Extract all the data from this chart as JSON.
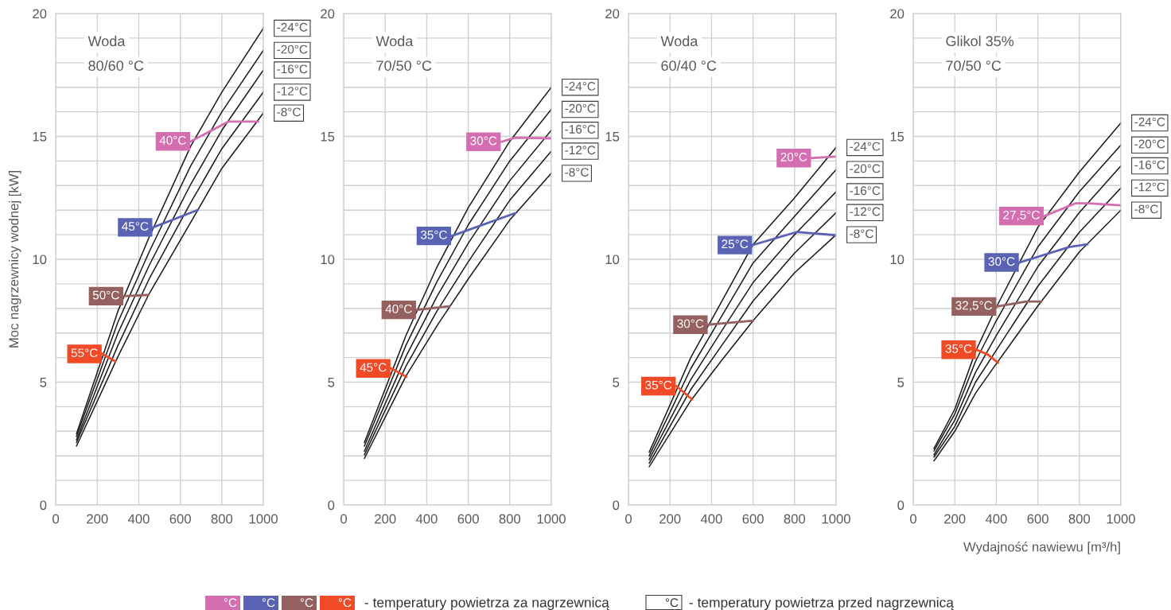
{
  "chart_data": [
    {
      "type": "line",
      "title": "Woda",
      "subtitle": "80/60 °C",
      "ylabel": "Moc nagrzewnicy wodnej [kW]",
      "xlim": [
        0,
        1000
      ],
      "ylim": [
        0,
        20
      ],
      "xticks": [
        0,
        200,
        400,
        600,
        800,
        1000
      ],
      "yticks": [
        0,
        {
          "value": 1,
          "label": null
        },
        {
          "value": 2,
          "label": null
        },
        {
          "value": 3,
          "label": null
        },
        {
          "value": 4,
          "label": null
        },
        5,
        {
          "value": 6,
          "label": null
        },
        {
          "value": 7,
          "label": null
        },
        {
          "value": 8,
          "label": null
        },
        {
          "value": 9,
          "label": null
        },
        10,
        {
          "value": 11,
          "label": null
        },
        {
          "value": 12,
          "label": null
        },
        {
          "value": 13,
          "label": null
        },
        {
          "value": 14,
          "label": null
        },
        15,
        {
          "value": 16,
          "label": null
        },
        {
          "value": 17,
          "label": null
        },
        {
          "value": 18,
          "label": null
        },
        {
          "value": 19,
          "label": null
        },
        20
      ],
      "grid": true,
      "marker": "none",
      "line_style": "solid",
      "annotations": [
        "°C",
        "- temperatury powietrza za nagrzewnicą",
        "- temperatury powietrza przed nagrzewnicą"
      ],
      "series": [
        {
          "name": "-24°C",
          "color": "#1a1a1a",
          "x": [
            100,
            300,
            450,
            650,
            800,
            1000
          ],
          "values": [
            2.9,
            7.9,
            10.9,
            14.6,
            16.8,
            19.4
          ]
        },
        {
          "name": "-20°C",
          "color": "#1a1a1a",
          "x": [
            100,
            300,
            450,
            650,
            800,
            1000
          ],
          "values": [
            2.8,
            7.45,
            10.3,
            13.8,
            16.0,
            18.5
          ]
        },
        {
          "name": "-16°C",
          "color": "#1a1a1a",
          "x": [
            100,
            300,
            450,
            650,
            800,
            1000
          ],
          "values": [
            2.65,
            7.0,
            9.75,
            13.05,
            15.25,
            17.7
          ]
        },
        {
          "name": "-12°C",
          "color": "#1a1a1a",
          "x": [
            100,
            300,
            450,
            650,
            800,
            1000
          ],
          "values": [
            2.55,
            6.5,
            9.2,
            12.3,
            14.5,
            16.8
          ]
        },
        {
          "name": "-8°C",
          "color": "#1a1a1a",
          "x": [
            100,
            300,
            450,
            650,
            800,
            1000
          ],
          "values": [
            2.4,
            6.05,
            8.6,
            11.5,
            13.7,
            15.95
          ]
        },
        {
          "name": "40°C",
          "color": "#d36fb0",
          "x": [
            651,
            831,
            975
          ],
          "values": [
            14.8,
            15.6,
            15.6
          ]
        },
        {
          "name": "45°C",
          "color": "#5a63b3",
          "x": [
            469,
            682
          ],
          "values": [
            11.3,
            12.0
          ]
        },
        {
          "name": "50°C",
          "color": "#946060",
          "x": [
            329,
            445
          ],
          "values": [
            8.5,
            8.55
          ]
        },
        {
          "name": "55°C",
          "color": "#f04a26",
          "x": [
            225,
            286
          ],
          "values": [
            6.15,
            5.85
          ]
        }
      ]
    },
    {
      "type": "line",
      "title": "Woda",
      "subtitle": "70/50 °C",
      "xlim": [
        0,
        1000
      ],
      "ylim": [
        0,
        20
      ],
      "xticks": [
        0,
        200,
        400,
        600,
        800,
        1000
      ],
      "yticks": [
        0,
        {
          "value": 1,
          "label": null
        },
        {
          "value": 2,
          "label": null
        },
        {
          "value": 3,
          "label": null
        },
        {
          "value": 4,
          "label": null
        },
        5,
        {
          "value": 6,
          "label": null
        },
        {
          "value": 7,
          "label": null
        },
        {
          "value": 8,
          "label": null
        },
        {
          "value": 9,
          "label": null
        },
        10,
        {
          "value": 11,
          "label": null
        },
        {
          "value": 12,
          "label": null
        },
        {
          "value": 13,
          "label": null
        },
        {
          "value": 14,
          "label": null
        },
        15,
        {
          "value": 16,
          "label": null
        },
        {
          "value": 17,
          "label": null
        },
        {
          "value": 18,
          "label": null
        },
        {
          "value": 19,
          "label": null
        },
        20
      ],
      "grid": true,
      "marker": "none",
      "line_style": "solid",
      "series": [
        {
          "name": "-24°C",
          "color": "#1a1a1a",
          "x": [
            100,
            300,
            450,
            600,
            800,
            1000
          ],
          "values": [
            2.55,
            6.9,
            9.7,
            12.1,
            14.8,
            17.0
          ]
        },
        {
          "name": "-20°C",
          "color": "#1a1a1a",
          "x": [
            100,
            300,
            450,
            600,
            800,
            1000
          ],
          "values": [
            2.4,
            6.5,
            9.1,
            11.4,
            14.0,
            16.1
          ]
        },
        {
          "name": "-16°C",
          "color": "#1a1a1a",
          "x": [
            100,
            300,
            450,
            600,
            800,
            1000
          ],
          "values": [
            2.2,
            6.05,
            8.5,
            10.65,
            13.2,
            15.25
          ]
        },
        {
          "name": "-12°C",
          "color": "#1a1a1a",
          "x": [
            100,
            300,
            450,
            600,
            800,
            1000
          ],
          "values": [
            2.05,
            5.65,
            7.9,
            9.9,
            12.4,
            14.4
          ]
        },
        {
          "name": "-8°C",
          "color": "#1a1a1a",
          "x": [
            100,
            300,
            450,
            600,
            800,
            1000
          ],
          "values": [
            1.9,
            5.25,
            7.3,
            9.2,
            11.6,
            13.5
          ]
        },
        {
          "name": "30°C",
          "color": "#d36fb0",
          "x": [
            760,
            825,
            1000
          ],
          "values": [
            14.78,
            14.95,
            14.92
          ]
        },
        {
          "name": "35°C",
          "color": "#5a63b3",
          "x": [
            521,
            826
          ],
          "values": [
            10.95,
            11.88
          ]
        },
        {
          "name": "40°C",
          "color": "#946060",
          "x": [
            352,
            508
          ],
          "values": [
            7.94,
            8.09
          ]
        },
        {
          "name": "45°C",
          "color": "#f04a26",
          "x": [
            229,
            302
          ],
          "values": [
            5.56,
            5.22
          ]
        }
      ]
    },
    {
      "type": "line",
      "title": "Woda",
      "subtitle": "60/40 °C",
      "xlim": [
        0,
        1000
      ],
      "ylim": [
        0,
        20
      ],
      "xticks": [
        0,
        200,
        400,
        600,
        800,
        1000
      ],
      "yticks": [
        0,
        {
          "value": 1,
          "label": null
        },
        {
          "value": 2,
          "label": null
        },
        {
          "value": 3,
          "label": null
        },
        {
          "value": 4,
          "label": null
        },
        5,
        {
          "value": 6,
          "label": null
        },
        {
          "value": 7,
          "label": null
        },
        {
          "value": 8,
          "label": null
        },
        {
          "value": 9,
          "label": null
        },
        10,
        {
          "value": 11,
          "label": null
        },
        {
          "value": 12,
          "label": null
        },
        {
          "value": 13,
          "label": null
        },
        {
          "value": 14,
          "label": null
        },
        15,
        {
          "value": 16,
          "label": null
        },
        {
          "value": 17,
          "label": null
        },
        {
          "value": 18,
          "label": null
        },
        {
          "value": 19,
          "label": null
        },
        20
      ],
      "grid": true,
      "marker": "none",
      "line_style": "solid",
      "series": [
        {
          "name": "-24°C",
          "color": "#1a1a1a",
          "x": [
            100,
            300,
            450,
            600,
            800,
            1000
          ],
          "values": [
            2.15,
            6.0,
            8.3,
            10.6,
            12.5,
            14.55
          ]
        },
        {
          "name": "-20°C",
          "color": "#1a1a1a",
          "x": [
            100,
            300,
            450,
            600,
            800,
            1000
          ],
          "values": [
            2.0,
            5.55,
            7.7,
            9.85,
            11.75,
            13.65
          ]
        },
        {
          "name": "-16°C",
          "color": "#1a1a1a",
          "x": [
            100,
            300,
            450,
            600,
            800,
            1000
          ],
          "values": [
            1.85,
            5.1,
            7.1,
            9.05,
            11.0,
            12.75
          ]
        },
        {
          "name": "-12°C",
          "color": "#1a1a1a",
          "x": [
            100,
            300,
            450,
            600,
            800,
            1000
          ],
          "values": [
            1.7,
            4.7,
            6.5,
            8.3,
            10.25,
            11.9
          ]
        },
        {
          "name": "-8°C",
          "color": "#1a1a1a",
          "x": [
            100,
            300,
            450,
            600,
            800,
            1000
          ],
          "values": [
            1.56,
            4.25,
            5.9,
            7.5,
            9.45,
            11.0
          ]
        },
        {
          "name": "20°C",
          "color": "#d36fb0",
          "x": [
            883,
            1000
          ],
          "values": [
            14.12,
            14.18
          ]
        },
        {
          "name": "25°C",
          "color": "#5a63b3",
          "x": [
            599,
            810,
            1000
          ],
          "values": [
            10.58,
            11.11,
            10.98
          ]
        },
        {
          "name": "30°C",
          "color": "#946060",
          "x": [
            385,
            599
          ],
          "values": [
            7.34,
            7.5
          ]
        },
        {
          "name": "35°C",
          "color": "#f04a26",
          "x": [
            231,
            306
          ],
          "values": [
            4.84,
            4.3
          ]
        }
      ]
    },
    {
      "type": "line",
      "title": "Glikol 35%",
      "subtitle": "70/50 °C",
      "xlabel": "Wydajność nawiewu [m³/h]",
      "xlim": [
        0,
        1000
      ],
      "ylim": [
        0,
        20
      ],
      "xticks": [
        0,
        200,
        400,
        600,
        800,
        1000
      ],
      "yticks": [
        0,
        {
          "value": 1,
          "label": null
        },
        {
          "value": 2,
          "label": null
        },
        {
          "value": 3,
          "label": null
        },
        {
          "value": 4,
          "label": null
        },
        5,
        {
          "value": 6,
          "label": null
        },
        {
          "value": 7,
          "label": null
        },
        {
          "value": 8,
          "label": null
        },
        {
          "value": 9,
          "label": null
        },
        10,
        {
          "value": 11,
          "label": null
        },
        {
          "value": 12,
          "label": null
        },
        {
          "value": 13,
          "label": null
        },
        {
          "value": 14,
          "label": null
        },
        15,
        {
          "value": 16,
          "label": null
        },
        {
          "value": 17,
          "label": null
        },
        {
          "value": 18,
          "label": null
        },
        {
          "value": 19,
          "label": null
        },
        20
      ],
      "grid": true,
      "marker": "none",
      "line_style": "solid",
      "series": [
        {
          "name": "-24°C",
          "color": "#1a1a1a",
          "x": [
            100,
            200,
            300,
            400,
            600,
            800,
            1000
          ],
          "values": [
            2.3,
            3.9,
            6.25,
            8.05,
            11.3,
            13.55,
            15.55
          ]
        },
        {
          "name": "-20°C",
          "color": "#1a1a1a",
          "x": [
            100,
            200,
            300,
            400,
            600,
            800,
            1000
          ],
          "values": [
            2.2,
            3.7,
            5.85,
            7.5,
            10.5,
            12.75,
            14.65
          ]
        },
        {
          "name": "-16°C",
          "color": "#1a1a1a",
          "x": [
            100,
            200,
            300,
            400,
            600,
            800,
            1000
          ],
          "values": [
            2.05,
            3.45,
            5.4,
            6.9,
            9.7,
            11.9,
            13.8
          ]
        },
        {
          "name": "-12°C",
          "color": "#1a1a1a",
          "x": [
            100,
            200,
            300,
            400,
            600,
            800,
            1000
          ],
          "values": [
            1.95,
            3.2,
            5.0,
            6.3,
            8.9,
            11.1,
            12.9
          ]
        },
        {
          "name": "-8°C",
          "color": "#1a1a1a",
          "x": [
            100,
            200,
            300,
            400,
            600,
            800,
            1000
          ],
          "values": [
            1.8,
            3.0,
            4.55,
            5.75,
            8.1,
            10.3,
            12.0
          ]
        },
        {
          "name": "27,5°C",
          "color": "#d36fb0",
          "x": [
            632,
            783,
            839,
            1000
          ],
          "values": [
            11.76,
            12.28,
            12.28,
            12.2
          ]
        },
        {
          "name": "30°C",
          "color": "#5a63b3",
          "x": [
            512,
            751,
            839
          ],
          "values": [
            9.87,
            10.5,
            10.61
          ]
        },
        {
          "name": "32,5°C",
          "color": "#946060",
          "x": [
            403,
            544,
            616
          ],
          "values": [
            8.08,
            8.28,
            8.28
          ]
        },
        {
          "name": "35°C",
          "color": "#f04a26",
          "x": [
            305,
            360,
            408
          ],
          "values": [
            6.32,
            6.12,
            5.79
          ]
        }
      ]
    }
  ]
}
